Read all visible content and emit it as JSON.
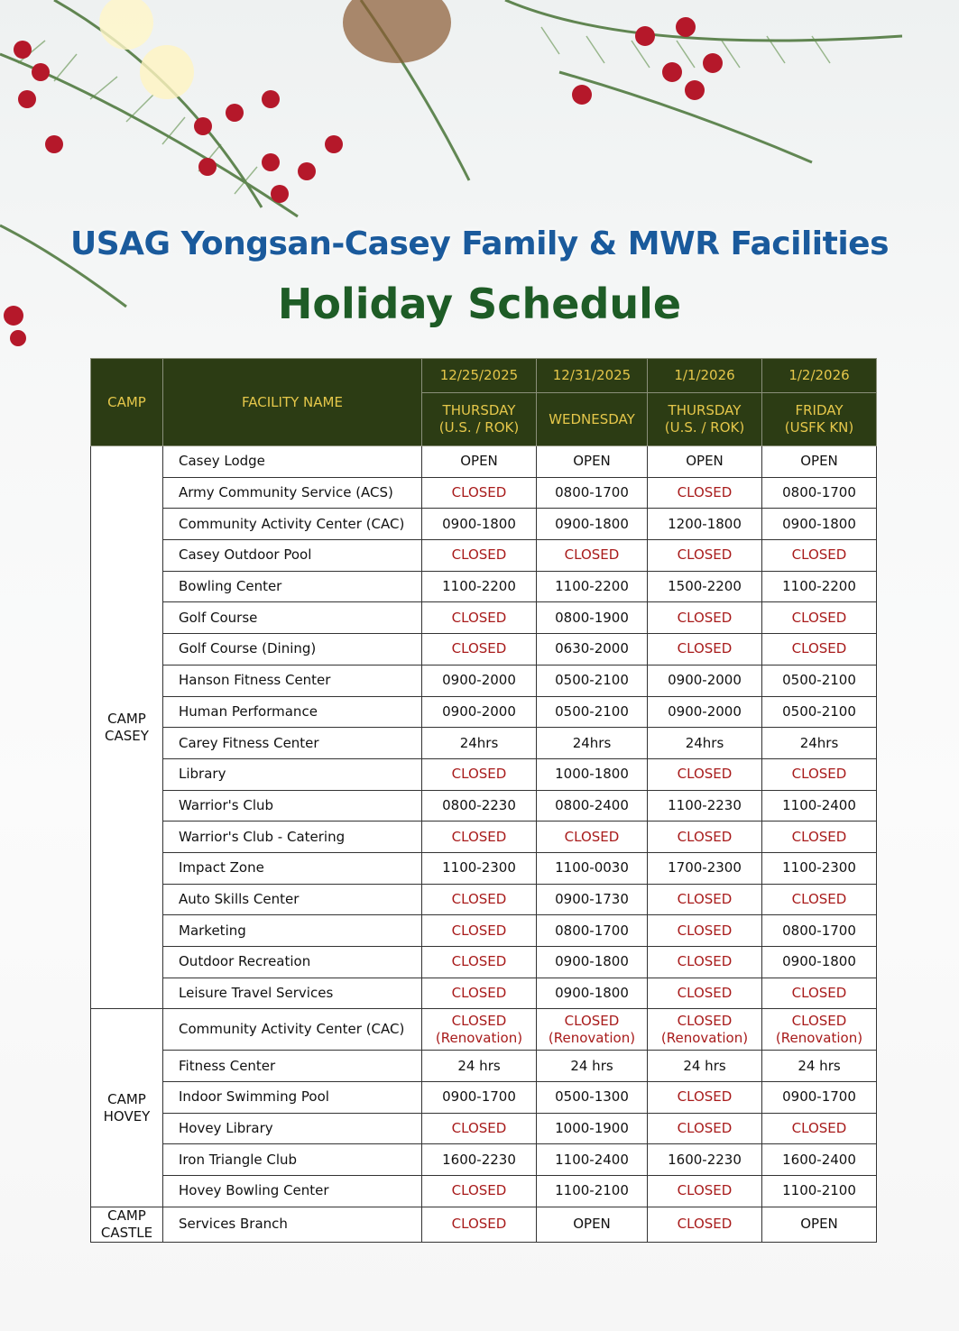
{
  "header": {
    "title": "USAG Yongsan-Casey Family & MWR Facilities",
    "subtitle": "Holiday Schedule"
  },
  "table": {
    "camp_header": "CAMP",
    "facility_header": "FACILITY NAME",
    "dates": [
      "12/25/2025",
      "12/31/2025",
      "1/1/2026",
      "1/2/2026"
    ],
    "days": [
      "THURSDAY\n(U.S. / ROK)",
      "WEDNESDAY",
      "THURSDAY\n(U.S. / ROK)",
      "FRIDAY\n(USFK KN)"
    ],
    "groups": [
      {
        "camp": "CAMP\nCASEY",
        "rows": [
          {
            "name": "Casey Lodge",
            "cells": [
              "OPEN",
              "OPEN",
              "OPEN",
              "OPEN"
            ],
            "colors": [
              "#111",
              "#111",
              "#111",
              "#111"
            ]
          },
          {
            "name": "Army Community Service (ACS)",
            "cells": [
              "CLOSED",
              "0800-1700",
              "CLOSED",
              "0800-1700"
            ],
            "colors": [
              "#a81b1b",
              "#111",
              "#a81b1b",
              "#111"
            ]
          },
          {
            "name": "Community Activity Center (CAC)",
            "cells": [
              "0900-1800",
              "0900-1800",
              "1200-1800",
              "0900-1800"
            ],
            "colors": [
              "#111",
              "#111",
              "#111",
              "#111"
            ]
          },
          {
            "name": "Casey Outdoor Pool",
            "cells": [
              "CLOSED",
              "CLOSED",
              "CLOSED",
              "CLOSED"
            ],
            "colors": [
              "#a81b1b",
              "#a81b1b",
              "#a81b1b",
              "#a81b1b"
            ]
          },
          {
            "name": "Bowling Center",
            "cells": [
              "1100-2200",
              "1100-2200",
              "1500-2200",
              "1100-2200"
            ],
            "colors": [
              "#111",
              "#111",
              "#111",
              "#111"
            ]
          },
          {
            "name": "Golf Course",
            "cells": [
              "CLOSED",
              "0800-1900",
              "CLOSED",
              "CLOSED"
            ],
            "colors": [
              "#a81b1b",
              "#111",
              "#a81b1b",
              "#a81b1b"
            ]
          },
          {
            "name": "Golf Course (Dining)",
            "cells": [
              "CLOSED",
              "0630-2000",
              "CLOSED",
              "CLOSED"
            ],
            "colors": [
              "#a81b1b",
              "#111",
              "#a81b1b",
              "#a81b1b"
            ]
          },
          {
            "name": "Hanson Fitness Center",
            "cells": [
              "0900-2000",
              "0500-2100",
              "0900-2000",
              "0500-2100"
            ],
            "colors": [
              "#111",
              "#111",
              "#111",
              "#111"
            ]
          },
          {
            "name": "Human Performance",
            "cells": [
              "0900-2000",
              "0500-2100",
              "0900-2000",
              "0500-2100"
            ],
            "colors": [
              "#111",
              "#111",
              "#111",
              "#111"
            ]
          },
          {
            "name": "Carey Fitness Center",
            "cells": [
              "24hrs",
              "24hrs",
              "24hrs",
              "24hrs"
            ],
            "colors": [
              "#111",
              "#111",
              "#111",
              "#111"
            ]
          },
          {
            "name": "Library",
            "cells": [
              "CLOSED",
              "1000-1800",
              "CLOSED",
              "CLOSED"
            ],
            "colors": [
              "#a81b1b",
              "#111",
              "#a81b1b",
              "#a81b1b"
            ]
          },
          {
            "name": "Warrior's Club",
            "cells": [
              "0800-2230",
              "0800-2400",
              "1100-2230",
              "1100-2400"
            ],
            "colors": [
              "#111",
              "#111",
              "#111",
              "#111"
            ]
          },
          {
            "name": "Warrior's Club - Catering",
            "cells": [
              "CLOSED",
              "CLOSED",
              "CLOSED",
              "CLOSED"
            ],
            "colors": [
              "#a81b1b",
              "#a81b1b",
              "#a81b1b",
              "#a81b1b"
            ]
          },
          {
            "name": "Impact Zone",
            "cells": [
              "1100-2300",
              "1100-0030",
              "1700-2300",
              "1100-2300"
            ],
            "colors": [
              "#111",
              "#111",
              "#111",
              "#111"
            ]
          },
          {
            "name": "Auto Skills Center",
            "cells": [
              "CLOSED",
              "0900-1730",
              "CLOSED",
              "CLOSED"
            ],
            "colors": [
              "#a81b1b",
              "#111",
              "#a81b1b",
              "#a81b1b"
            ]
          },
          {
            "name": "Marketing",
            "cells": [
              "CLOSED",
              "0800-1700",
              "CLOSED",
              "0800-1700"
            ],
            "colors": [
              "#a81b1b",
              "#111",
              "#a81b1b",
              "#111"
            ]
          },
          {
            "name": "Outdoor Recreation",
            "cells": [
              "CLOSED",
              "0900-1800",
              "CLOSED",
              "0900-1800"
            ],
            "colors": [
              "#a81b1b",
              "#111",
              "#a81b1b",
              "#111"
            ]
          },
          {
            "name": "Leisure Travel Services",
            "cells": [
              "CLOSED",
              "0900-1800",
              "CLOSED",
              "CLOSED"
            ],
            "colors": [
              "#a81b1b",
              "#111",
              "#a81b1b",
              "#a81b1b"
            ]
          }
        ]
      },
      {
        "camp": "CAMP\nHOVEY",
        "rows": [
          {
            "name": "Community Activity Center (CAC)",
            "cells": [
              "CLOSED\n(Renovation)",
              "CLOSED\n(Renovation)",
              "CLOSED\n(Renovation)",
              "CLOSED\n(Renovation)"
            ],
            "colors": [
              "#a81b1b",
              "#a81b1b",
              "#a81b1b",
              "#a81b1b"
            ]
          },
          {
            "name": "Fitness Center",
            "cells": [
              "24 hrs",
              "24 hrs",
              "24 hrs",
              "24 hrs"
            ],
            "colors": [
              "#111",
              "#111",
              "#111",
              "#111"
            ]
          },
          {
            "name": "Indoor Swimming Pool",
            "cells": [
              "0900-1700",
              "0500-1300",
              "CLOSED",
              "0900-1700"
            ],
            "colors": [
              "#111",
              "#111",
              "#a81b1b",
              "#111"
            ]
          },
          {
            "name": "Hovey Library",
            "cells": [
              "CLOSED",
              "1000-1900",
              "CLOSED",
              "CLOSED"
            ],
            "colors": [
              "#a81b1b",
              "#111",
              "#a81b1b",
              "#a81b1b"
            ]
          },
          {
            "name": "Iron Triangle Club",
            "cells": [
              "1600-2230",
              "1100-2400",
              "1600-2230",
              "1600-2400"
            ],
            "colors": [
              "#111",
              "#111",
              "#111",
              "#111"
            ]
          },
          {
            "name": "Hovey Bowling  Center",
            "cells": [
              "CLOSED",
              "1100-2100",
              "CLOSED",
              "1100-2100"
            ],
            "colors": [
              "#a81b1b",
              "#111",
              "#a81b1b",
              "#111"
            ]
          }
        ]
      },
      {
        "camp": "CAMP\nCASTLE",
        "rows": [
          {
            "name": "Services Branch",
            "cells": [
              "CLOSED",
              "OPEN",
              "CLOSED",
              "OPEN"
            ],
            "colors": [
              "#a81b1b",
              "#111",
              "#a81b1b",
              "#111"
            ]
          }
        ]
      }
    ]
  }
}
